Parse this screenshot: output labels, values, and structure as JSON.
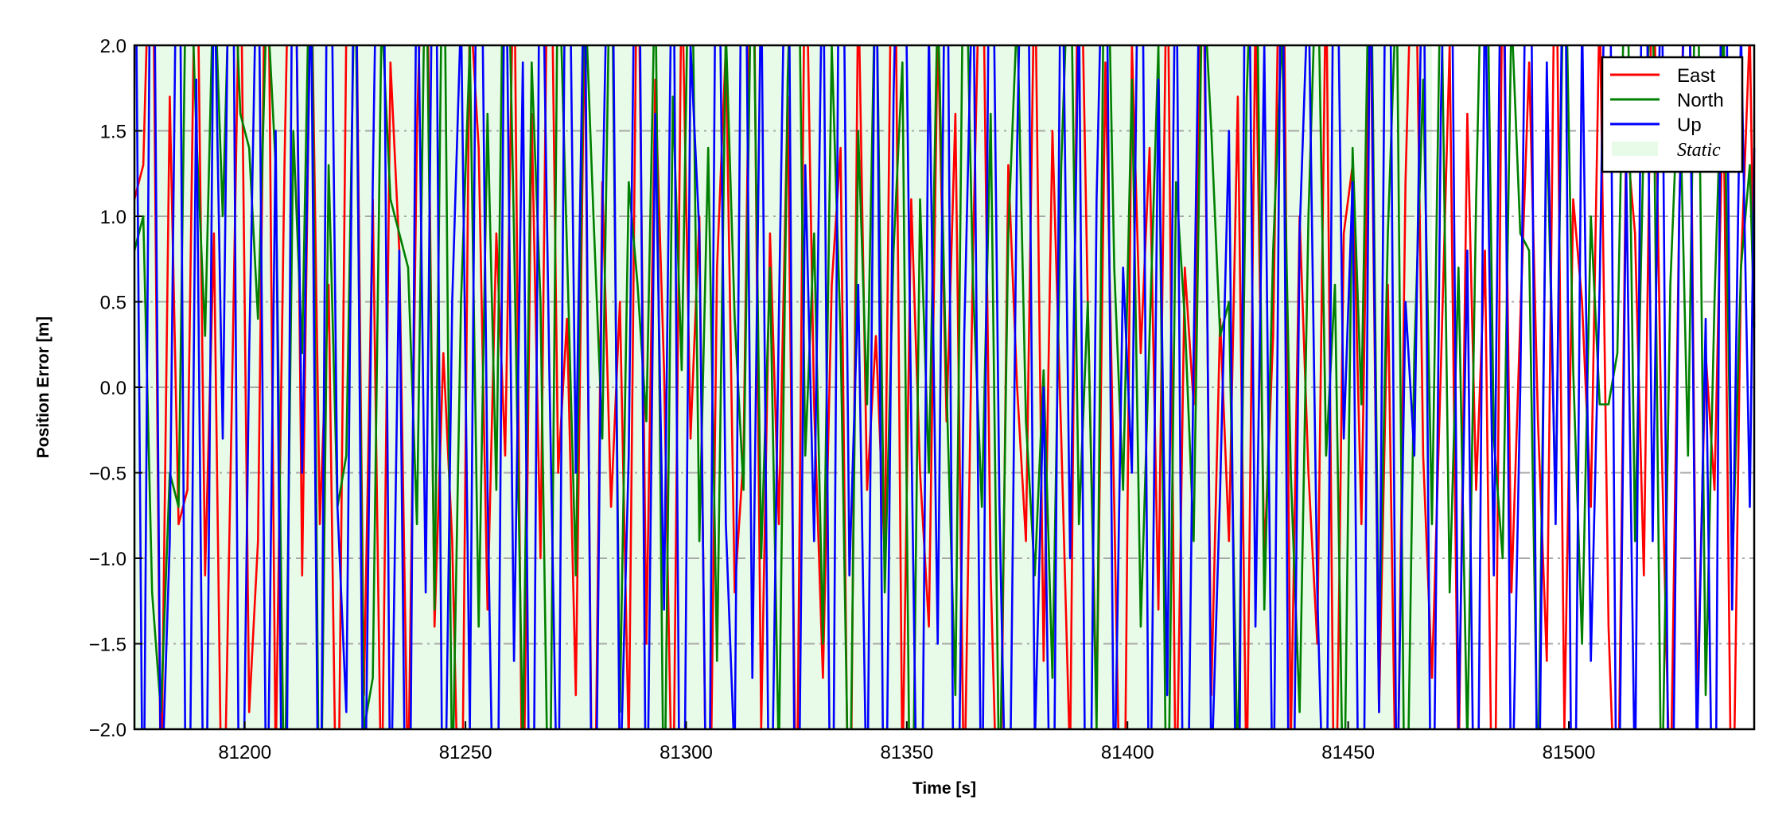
{
  "chart_data": {
    "type": "line",
    "title": "",
    "xlabel": "Time [s]",
    "ylabel": "Position Error [m]",
    "xlim": [
      81175,
      81542
    ],
    "ylim": [
      -2.0,
      2.0
    ],
    "xticks": [
      81200,
      81250,
      81300,
      81350,
      81400,
      81450,
      81500
    ],
    "xtick_labels": [
      "81200",
      "81250",
      "81300",
      "81350",
      "81400",
      "81450",
      "81500"
    ],
    "yticks": [
      -2.0,
      -1.5,
      -1.0,
      -0.5,
      0.0,
      0.5,
      1.0,
      1.5,
      2.0
    ],
    "ytick_labels": [
      "−2.0",
      "−1.5",
      "−1.0",
      "−0.5",
      "0.0",
      "0.5",
      "1.0",
      "1.5",
      "2.0"
    ],
    "grid": "horizontal dash-dot",
    "legend_placement": "top-right",
    "x_start": 81175,
    "x_step": 2,
    "static_intervals": [
      [
        81175,
        81469
      ]
    ],
    "static_label": "Static",
    "static_color": "#e8fbe8",
    "series": [
      {
        "name": "East",
        "color": "#ff0000",
        "values": [
          1.1,
          1.3,
          3.2,
          -2.5,
          1.7,
          -0.8,
          -0.6,
          3.1,
          -1.1,
          0.9,
          -3.0,
          -0.2,
          2.8,
          -1.9,
          -0.9,
          3.5,
          -2.2,
          1.3,
          4.0,
          -1.1,
          2.6,
          -0.8,
          0.6,
          -3.1,
          2.1,
          3.0,
          -1.8,
          1.1,
          -2.6,
          1.9,
          0.8,
          -2.4,
          1.5,
          3.3,
          -1.4,
          0.2,
          -0.9,
          -3.2,
          2.3,
          1.4,
          -1.3,
          0.9,
          -0.4,
          2.7,
          -2.9,
          1.6,
          -1.0,
          3.6,
          -0.5,
          0.4,
          -1.8,
          2.2,
          -3.4,
          1.2,
          -0.7,
          0.5,
          -2.1,
          3.0,
          -1.5,
          1.8,
          0.1,
          -2.7,
          2.5,
          -0.3,
          1.0,
          -3.6,
          0.7,
          2.0,
          -1.2,
          -0.4,
          3.4,
          -2.0,
          0.9,
          -0.8,
          1.7,
          -2.8,
          2.9,
          -0.1,
          -1.7,
          0.6,
          1.4,
          -3.3,
          2.4,
          -0.6,
          0.3,
          -1.0,
          3.8,
          -2.3,
          1.1,
          -0.5,
          -1.4,
          2.1,
          -0.2,
          1.6,
          -2.5,
          0.8,
          3.1,
          -1.1,
          -3.0,
          1.3,
          0.0,
          -0.9,
          2.6,
          -1.6,
          1.5,
          -0.3,
          -2.2,
          3.3,
          0.5,
          -1.9,
          1.9,
          -0.7,
          -3.5,
          2.0,
          0.2,
          1.4,
          -1.3,
          2.8,
          -2.6,
          0.7,
          -0.1,
          3.0,
          -1.8,
          0.4,
          -0.9,
          1.7,
          -2.4,
          2.2,
          -1.0,
          0.3,
          3.7,
          -2.1,
          1.0,
          -0.5,
          -1.5,
          2.5,
          -3.1,
          0.9,
          1.3,
          -0.8,
          2.4,
          -1.9,
          0.6,
          -2.8,
          1.2,
          3.2,
          -0.4,
          -1.7,
          0.1,
          2.0,
          -2.3,
          1.6,
          -0.6,
          0.8,
          -3.4,
          2.7,
          -1.2,
          0.4,
          1.9,
          -0.2,
          -1.6,
          3.1,
          -2.0,
          1.1,
          0.5,
          -0.7,
          2.3,
          -1.4,
          -2.9,
          1.5,
          0.9,
          -1.1,
          2.8,
          -0.3,
          -2.5,
          1.0,
          3.4,
          -1.9,
          0.2,
          -0.6,
          1.8,
          -3.0,
          0.7,
          2.1,
          -1.3
        ]
      },
      {
        "name": "North",
        "color": "#008000",
        "values": [
          0.8,
          1.0,
          -1.2,
          -1.9,
          -0.5,
          -0.7,
          3.1,
          1.5,
          0.3,
          2.5,
          1.0,
          2.9,
          1.6,
          1.4,
          0.4,
          2.3,
          1.3,
          -2.6,
          1.5,
          0.2,
          3.0,
          -3.1,
          1.3,
          -0.7,
          -0.4,
          2.6,
          -2.0,
          -1.7,
          2.2,
          1.1,
          0.9,
          0.7,
          -0.8,
          2.8,
          -1.3,
          3.2,
          -2.4,
          0.5,
          2.0,
          -1.4,
          1.6,
          -0.6,
          3.5,
          0.9,
          -2.1,
          1.9,
          0.5,
          -3.0,
          2.7,
          0.8,
          -1.1,
          2.4,
          1.0,
          -0.3,
          3.0,
          -1.9,
          1.2,
          0.6,
          -0.2,
          2.5,
          -2.7,
          1.7,
          0.1,
          3.3,
          -0.9,
          1.4,
          -1.6,
          2.1,
          0.4,
          -0.6,
          2.9,
          -1.0,
          0.7,
          -2.2,
          1.8,
          3.6,
          -0.4,
          0.9,
          -1.5,
          2.0,
          0.3,
          -2.8,
          1.5,
          -0.1,
          2.6,
          -1.2,
          0.8,
          1.9,
          -3.3,
          1.1,
          -0.5,
          2.3,
          0.0,
          -1.8,
          3.1,
          0.6,
          -0.7,
          1.6,
          -2.5,
          0.9,
          2.2,
          -0.2,
          -1.1,
          0.1,
          -1.7,
          1.3,
          2.8,
          -0.8,
          0.5,
          -2.0,
          3.4,
          0.7,
          -0.6,
          1.8,
          -1.4,
          0.3,
          2.0,
          -3.0,
          1.2,
          0.4,
          -0.9,
          2.5,
          1.5,
          0.3,
          0.5,
          -2.3,
          1.7,
          3.2,
          -1.3,
          0.8,
          2.1,
          -0.5,
          -1.9,
          1.0,
          2.7,
          -0.4,
          0.6,
          -2.7,
          1.4,
          -0.1,
          3.0,
          -1.6,
          0.9,
          2.4,
          -3.2,
          0.2,
          1.8,
          -0.8,
          2.6,
          -1.2,
          0.7,
          -2.1,
          1.1,
          3.5,
          -0.3,
          -1.0,
          2.2,
          0.9,
          0.8,
          -2.4,
          1.6,
          -0.7,
          2.9,
          0.1,
          -1.5,
          1.0,
          -0.1,
          -0.1,
          0.2,
          3.0,
          -0.9,
          1.5,
          2.4,
          -2.6,
          0.6,
          1.9,
          -0.4,
          3.1,
          -1.8,
          0.5,
          2.2,
          -1.1,
          0.7,
          1.3,
          -0.6
        ]
      },
      {
        "name": "Up",
        "color": "#0000ff",
        "values": [
          3.5,
          -3.0,
          4.2,
          -2.5,
          -0.9,
          3.8,
          -4.0,
          1.8,
          -3.5,
          2.6,
          -0.3,
          4.1,
          -3.8,
          0.2,
          3.0,
          -2.9,
          1.5,
          -4.3,
          3.6,
          -0.5,
          2.4,
          -3.6,
          4.0,
          -0.7,
          -1.9,
          3.3,
          -3.1,
          1.2,
          4.4,
          -2.7,
          0.8,
          -4.1,
          2.9,
          -1.2,
          3.9,
          -3.3,
          0.5,
          2.2,
          -2.0,
          4.3,
          -0.6,
          -3.7,
          3.1,
          -1.6,
          1.9,
          -4.2,
          3.4,
          0.1,
          -2.8,
          4.0,
          -0.5,
          2.7,
          -3.9,
          1.0,
          3.7,
          -2.4,
          -0.4,
          4.1,
          -3.0,
          1.6,
          -1.3,
          3.2,
          -4.4,
          2.0,
          0.9,
          -3.5,
          3.8,
          -0.8,
          -2.2,
          4.2,
          -1.7,
          2.5,
          -3.2,
          0.4,
          3.6,
          -4.0,
          1.3,
          -0.9,
          2.8,
          -3.8,
          4.3,
          -1.1,
          0.6,
          -2.6,
          3.0,
          -3.4,
          1.7,
          4.0,
          -0.2,
          -3.9,
          2.1,
          -1.5,
          3.5,
          -4.1,
          0.3,
          2.6,
          -2.9,
          3.9,
          -0.7,
          -3.3,
          1.4,
          4.2,
          -2.1,
          0.0,
          -3.6,
          3.1,
          -1.0,
          2.3,
          -4.3,
          1.1,
          3.4,
          -2.5,
          0.7,
          -0.5,
          4.0,
          -3.0,
          1.8,
          -1.8,
          2.9,
          -4.0,
          0.2,
          3.7,
          -2.3,
          -0.6,
          1.5,
          -3.7,
          4.1,
          -1.4,
          2.0,
          -2.8,
          3.3,
          -4.2,
          0.9,
          2.4,
          -1.2,
          -3.1,
          3.8,
          -0.3,
          1.2,
          -4.4,
          2.7,
          -1.9,
          4.3,
          -2.6,
          0.5,
          -0.4,
          3.0,
          -3.5,
          1.6,
          4.1,
          -2.0,
          0.8,
          -3.8,
          2.5,
          -1.1,
          3.6,
          -2.7,
          0.0,
          4.2,
          -3.2,
          1.9,
          -0.8,
          3.4,
          -4.0,
          2.2,
          -1.6,
          0.6,
          3.9,
          -3.4,
          1.3,
          -2.4,
          4.0,
          -0.9,
          2.8,
          -3.9,
          1.0,
          3.2,
          -2.2,
          0.4,
          -3.6,
          4.4,
          -1.3,
          2.1,
          -0.7,
          3.5
        ]
      }
    ]
  }
}
